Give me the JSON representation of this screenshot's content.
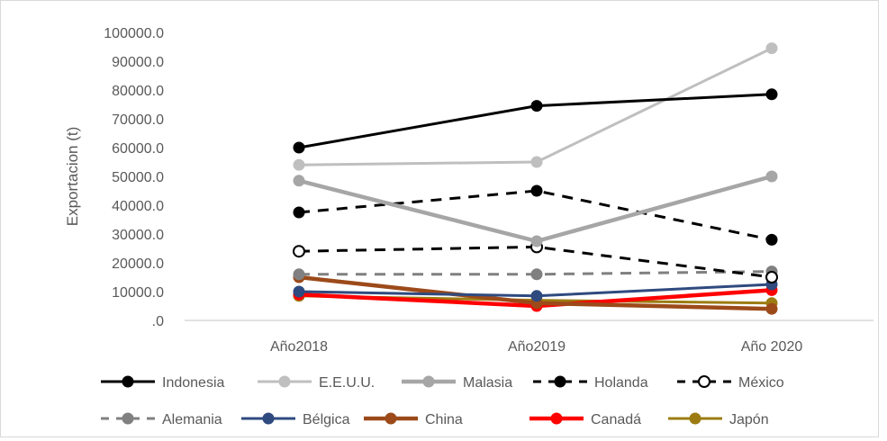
{
  "chart_data": {
    "type": "line",
    "title": "",
    "xlabel": "",
    "ylabel": "Exportacion (t)",
    "categories": [
      "Año2018",
      "Año2019",
      "Año 2020"
    ],
    "ylim": [
      0,
      100000
    ],
    "yticks": [
      {
        "value": 0,
        "label": ".0"
      },
      {
        "value": 10000,
        "label": "10000.0"
      },
      {
        "value": 20000,
        "label": "20000.0"
      },
      {
        "value": 30000,
        "label": "30000.0"
      },
      {
        "value": 40000,
        "label": "40000.0"
      },
      {
        "value": 50000,
        "label": "50000.0"
      },
      {
        "value": 60000,
        "label": "60000.0"
      },
      {
        "value": 70000,
        "label": "70000.0"
      },
      {
        "value": 80000,
        "label": "80000.0"
      },
      {
        "value": 90000,
        "label": "90000.0"
      },
      {
        "value": 100000,
        "label": "100000.0"
      }
    ],
    "grid": false,
    "legend_position": "bottom",
    "series": [
      {
        "name": "Indonesia",
        "values": [
          60000,
          74500,
          78500
        ],
        "color": "#000000",
        "style": "solid",
        "marker": "filled"
      },
      {
        "name": "E.E.U.U.",
        "values": [
          54000,
          55000,
          94500
        ],
        "color": "#bfbfbf",
        "style": "solid",
        "marker": "filled"
      },
      {
        "name": "Malasia",
        "values": [
          48500,
          27500,
          50000
        ],
        "color": "#a6a6a6",
        "style": "solid-thick",
        "marker": "filled"
      },
      {
        "name": "Holanda",
        "values": [
          37500,
          45000,
          28000
        ],
        "color": "#000000",
        "style": "dashed",
        "marker": "filled"
      },
      {
        "name": "México",
        "values": [
          24000,
          25500,
          15000
        ],
        "color": "#000000",
        "style": "dashed",
        "marker": "open"
      },
      {
        "name": "Alemania",
        "values": [
          16000,
          16000,
          17000
        ],
        "color": "#808080",
        "style": "dashed",
        "marker": "filled"
      },
      {
        "name": "Bélgica",
        "values": [
          10000,
          8500,
          12500
        ],
        "color": "#2f4a7f",
        "style": "solid",
        "marker": "filled"
      },
      {
        "name": "China",
        "values": [
          15000,
          6000,
          4000
        ],
        "color": "#9c4a1a",
        "style": "solid-thick",
        "marker": "filled"
      },
      {
        "name": "Canadá",
        "values": [
          9000,
          5000,
          10500
        ],
        "color": "#ff0000",
        "style": "solid-thick",
        "marker": "filled"
      },
      {
        "name": "Japón",
        "values": [
          8500,
          7000,
          6000
        ],
        "color": "#9c7c12",
        "style": "solid",
        "marker": "filled"
      }
    ]
  }
}
